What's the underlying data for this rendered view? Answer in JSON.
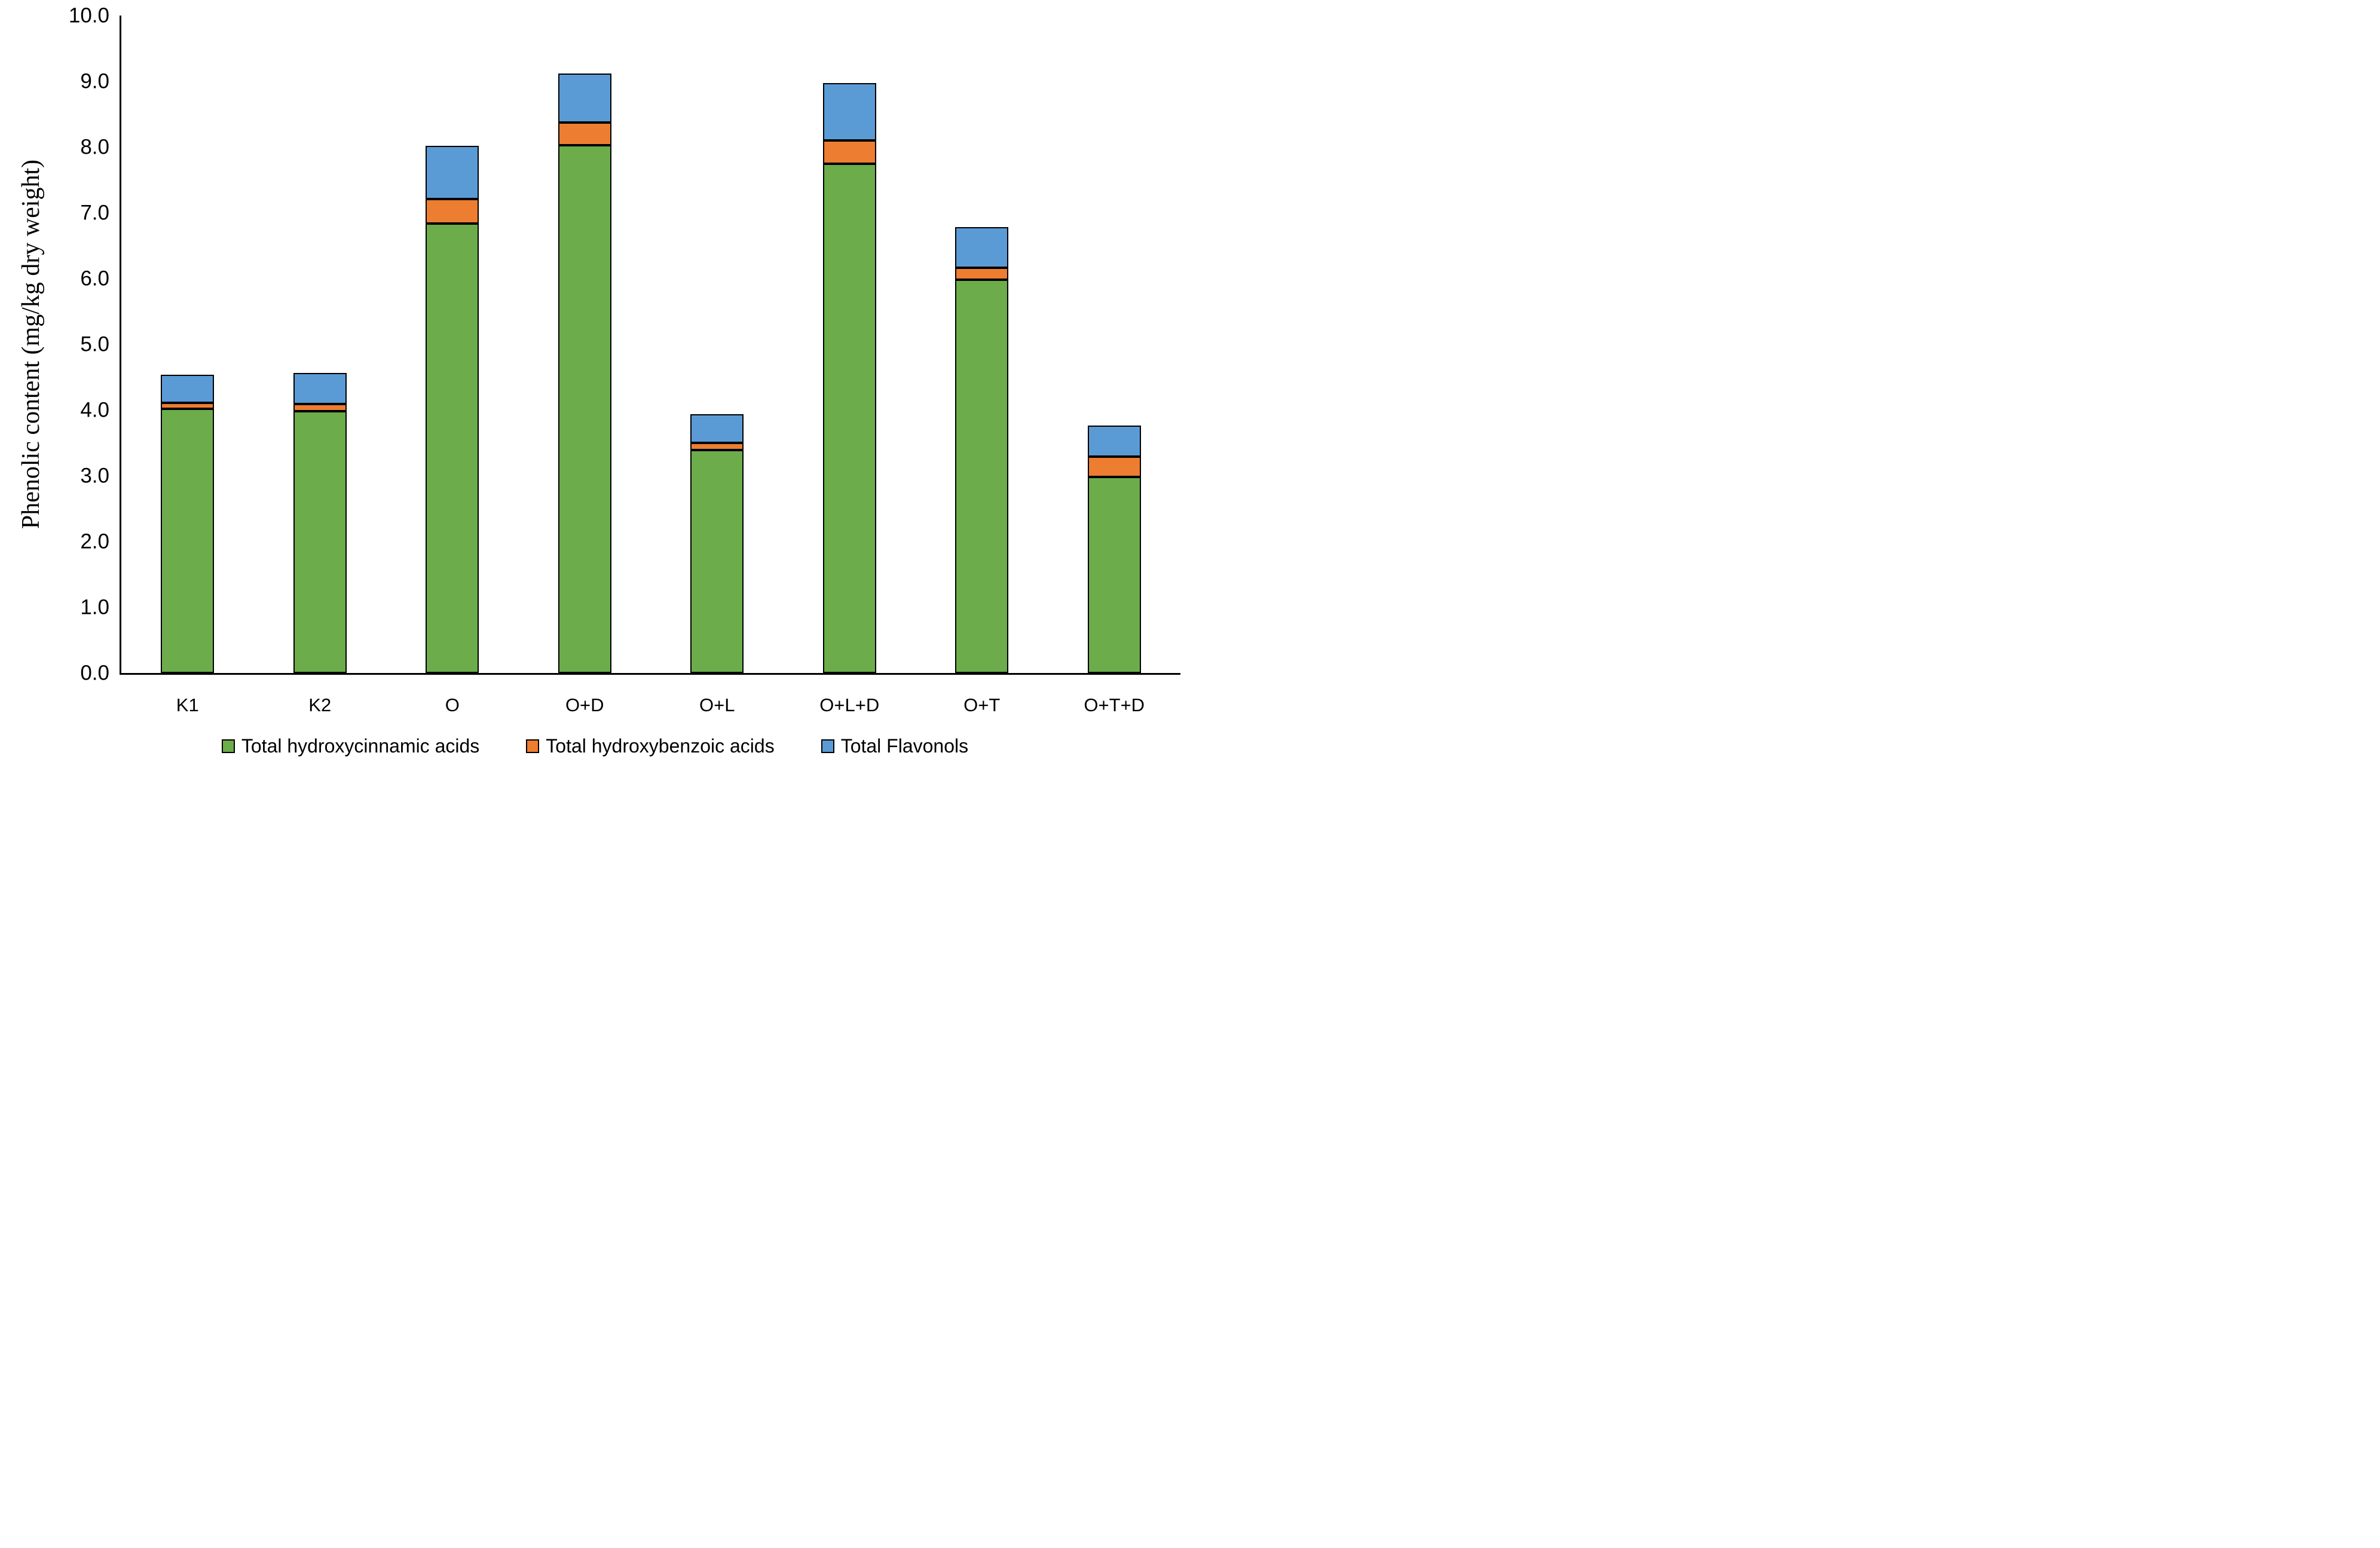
{
  "figure": {
    "background_color": "#ffffff",
    "axis_color": "#000000",
    "bar_border_color": "#000000"
  },
  "chart_data": {
    "type": "bar",
    "stacked": true,
    "title": "",
    "xlabel": "",
    "ylabel": "Phenolic content (mg/kg dry weight)",
    "ylim": [
      0,
      10
    ],
    "ytick_step": 1.0,
    "ytick_labels": [
      "0.0",
      "1.0",
      "2.0",
      "3.0",
      "4.0",
      "5.0",
      "6.0",
      "7.0",
      "8.0",
      "9.0",
      "10.0"
    ],
    "grid": false,
    "legend_position": "bottom",
    "categories": [
      "K1",
      "K2",
      "O",
      "O+D",
      "O+L",
      "O+L+D",
      "O+T",
      "O+T+D"
    ],
    "series": [
      {
        "name": "Total hydroxycinnamic acids",
        "color": "#6CAC4A",
        "values": [
          4.02,
          3.98,
          6.84,
          8.03,
          3.39,
          7.75,
          5.98,
          2.98
        ]
      },
      {
        "name": "Total hydroxybenzoic acids",
        "color": "#ED7D31",
        "values": [
          0.09,
          0.11,
          0.37,
          0.34,
          0.11,
          0.35,
          0.18,
          0.31
        ]
      },
      {
        "name": "Total Flavonols",
        "color": "#5B9BD5",
        "values": [
          0.43,
          0.47,
          0.81,
          0.75,
          0.44,
          0.87,
          0.62,
          0.47
        ]
      }
    ]
  }
}
